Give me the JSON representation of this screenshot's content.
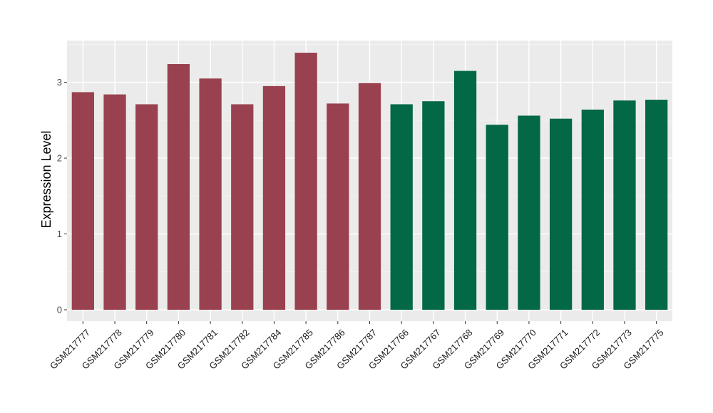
{
  "chart_data": {
    "type": "bar",
    "title": "",
    "xlabel": "",
    "ylabel": "Expression Level",
    "ylim": [
      -0.15,
      3.55
    ],
    "yticks": [
      0,
      1,
      2,
      3
    ],
    "grid": true,
    "legend": "none",
    "colors": {
      "panel_background": "#ebebeb",
      "grid_major": "#ffffff",
      "group_a": "#99414f",
      "group_b": "#026845"
    },
    "categories": [
      "GSM217777",
      "GSM217778",
      "GSM217779",
      "GSM217780",
      "GSM217781",
      "GSM217782",
      "GSM217784",
      "GSM217785",
      "GSM217786",
      "GSM217787",
      "GSM217766",
      "GSM217767",
      "GSM217768",
      "GSM217769",
      "GSM217770",
      "GSM217771",
      "GSM217772",
      "GSM217773",
      "GSM217775"
    ],
    "values": [
      2.87,
      2.84,
      2.71,
      3.24,
      3.05,
      2.71,
      2.95,
      3.39,
      2.72,
      2.99,
      2.71,
      2.75,
      3.15,
      2.44,
      2.56,
      2.52,
      2.64,
      2.76,
      2.77
    ],
    "groups": [
      "a",
      "a",
      "a",
      "a",
      "a",
      "a",
      "a",
      "a",
      "a",
      "a",
      "b",
      "b",
      "b",
      "b",
      "b",
      "b",
      "b",
      "b",
      "b"
    ]
  }
}
